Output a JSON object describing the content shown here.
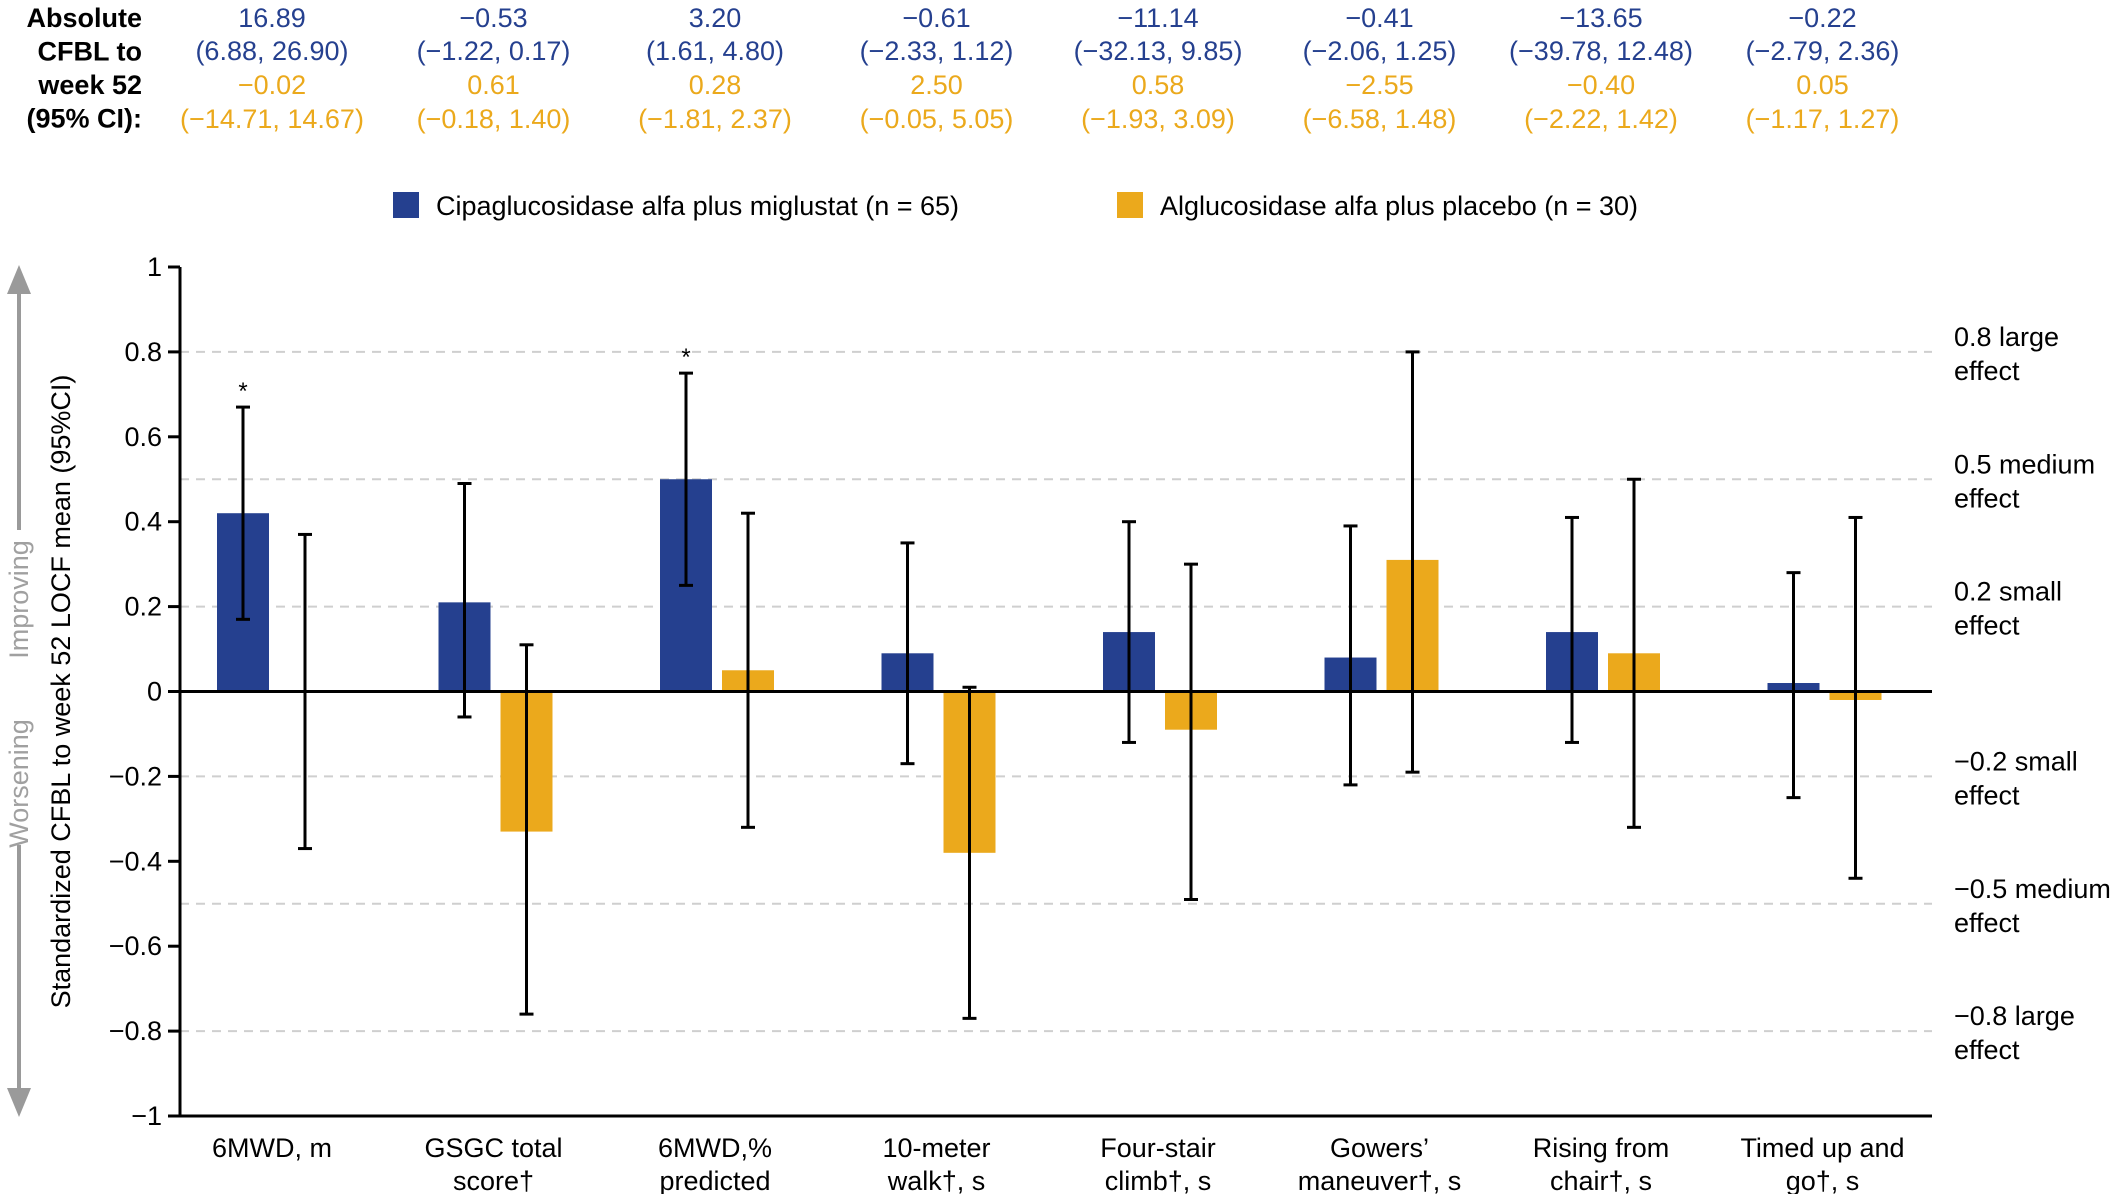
{
  "colors": {
    "series_a": "#25408f",
    "series_b": "#eba91c",
    "axis": "#000000",
    "grid": "#cfcfcf",
    "arrow": "#9a9a9a",
    "arrow_text": "#a0a0a0",
    "header": "#000000"
  },
  "header": {
    "lines": [
      "Absolute",
      "CFBL to",
      "week 52",
      "(95% CI):"
    ]
  },
  "ci_table": [
    {
      "a_mean": "16.89",
      "a_ci": "(6.88, 26.90)",
      "b_mean": "−0.02",
      "b_ci": "(−14.71, 14.67)"
    },
    {
      "a_mean": "−0.53",
      "a_ci": "(−1.22, 0.17)",
      "b_mean": "0.61",
      "b_ci": "(−0.18, 1.40)"
    },
    {
      "a_mean": "3.20",
      "a_ci": "(1.61, 4.80)",
      "b_mean": "0.28",
      "b_ci": "(−1.81, 2.37)"
    },
    {
      "a_mean": "−0.61",
      "a_ci": "(−2.33, 1.12)",
      "b_mean": "2.50",
      "b_ci": "(−0.05, 5.05)"
    },
    {
      "a_mean": "−11.14",
      "a_ci": "(−32.13, 9.85)",
      "b_mean": "0.58",
      "b_ci": "(−1.93, 3.09)"
    },
    {
      "a_mean": "−0.41",
      "a_ci": "(−2.06, 1.25)",
      "b_mean": "−2.55",
      "b_ci": "(−6.58, 1.48)"
    },
    {
      "a_mean": "−13.65",
      "a_ci": "(−39.78, 12.48)",
      "b_mean": "−0.40",
      "b_ci": "(−2.22, 1.42)"
    },
    {
      "a_mean": "−0.22",
      "a_ci": "(−2.79, 2.36)",
      "b_mean": "0.05",
      "b_ci": "(−1.17, 1.27)"
    }
  ],
  "legend": [
    {
      "label": "Cipaglucosidase alfa plus miglustat (n = 65)"
    },
    {
      "label": "Alglucosidase alfa plus placebo (n = 30)"
    }
  ],
  "direction": {
    "up": "Improving",
    "down": "Worsening"
  },
  "effect_labels": [
    {
      "value": 0.8,
      "lines": [
        "0.8 large",
        "effect"
      ]
    },
    {
      "value": 0.5,
      "lines": [
        "0.5 medium",
        "effect"
      ]
    },
    {
      "value": 0.2,
      "lines": [
        "0.2 small",
        "effect"
      ]
    },
    {
      "value": -0.2,
      "lines": [
        "−0.2 small",
        "effect"
      ]
    },
    {
      "value": -0.5,
      "lines": [
        "−0.5 medium",
        "effect"
      ]
    },
    {
      "value": -0.8,
      "lines": [
        "−0.8 large",
        "effect"
      ]
    }
  ],
  "chart_data": {
    "type": "bar",
    "ylabel": "Standardized CFBL to week 52 LOCF mean (95%CI)",
    "ylim": [
      -1,
      1
    ],
    "yticks": [
      {
        "v": 1,
        "label": "1"
      },
      {
        "v": 0.8,
        "label": "0.8"
      },
      {
        "v": 0.6,
        "label": "0.6"
      },
      {
        "v": 0.4,
        "label": "0.4"
      },
      {
        "v": 0.2,
        "label": "0.2"
      },
      {
        "v": 0,
        "label": "0"
      },
      {
        "v": -0.2,
        "label": "−0.2"
      },
      {
        "v": -0.4,
        "label": "−0.4"
      },
      {
        "v": -0.6,
        "label": "−0.6"
      },
      {
        "v": -0.8,
        "label": "−0.8"
      },
      {
        "v": -1,
        "label": "−1"
      }
    ],
    "gridlines": [
      0.8,
      0.5,
      0.2,
      -0.2,
      -0.5,
      -0.8
    ],
    "categories": [
      [
        "6MWD, m"
      ],
      [
        "GSGC total",
        "score†"
      ],
      [
        "6MWD,%",
        "predicted"
      ],
      [
        "10-meter",
        "walk†, s"
      ],
      [
        "Four-stair",
        "climb†, s"
      ],
      [
        "Gowers’",
        "maneuver†, s"
      ],
      [
        "Rising from",
        "chair†, s"
      ],
      [
        "Timed up and",
        "go†, s"
      ]
    ],
    "series": [
      {
        "name": "Cipaglucosidase alfa plus miglustat (n = 65)",
        "values": [
          0.42,
          0.21,
          0.5,
          0.09,
          0.14,
          0.08,
          0.14,
          0.02
        ],
        "ci_low": [
          0.17,
          -0.06,
          0.25,
          -0.17,
          -0.12,
          -0.22,
          -0.12,
          -0.25
        ],
        "ci_high": [
          0.67,
          0.49,
          0.75,
          0.35,
          0.4,
          0.39,
          0.41,
          0.28
        ],
        "significance": [
          "*",
          "",
          "*",
          "",
          "",
          "",
          "",
          ""
        ]
      },
      {
        "name": "Alglucosidase alfa plus placebo (n = 30)",
        "values": [
          0.0,
          -0.33,
          0.05,
          -0.38,
          -0.09,
          0.31,
          0.09,
          -0.02
        ],
        "ci_low": [
          -0.37,
          -0.76,
          -0.32,
          -0.77,
          -0.49,
          -0.19,
          -0.32,
          -0.44
        ],
        "ci_high": [
          0.37,
          0.11,
          0.42,
          0.01,
          0.3,
          0.8,
          0.5,
          0.41
        ],
        "significance": [
          "",
          "",
          "",
          "",
          "",
          "",
          "",
          ""
        ]
      }
    ]
  }
}
